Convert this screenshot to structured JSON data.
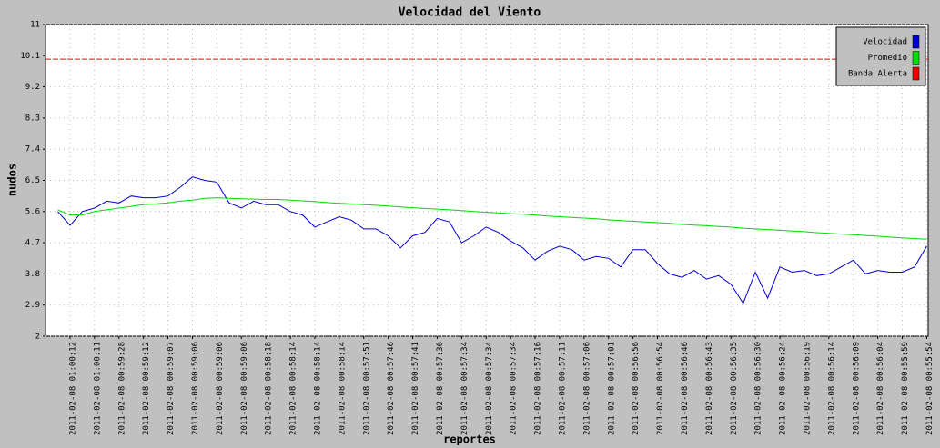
{
  "chart_data": {
    "type": "line",
    "title": "Velocidad del Viento",
    "xlabel": "reportes",
    "ylabel": "nudos",
    "categories": [
      null,
      "2011-02-08 01:00:12",
      null,
      "2011-02-08 01:00:11",
      null,
      "2011-02-08 00:59:28",
      null,
      "2011-02-08 00:59:12",
      null,
      "2011-02-08 00:59:07",
      null,
      "2011-02-08 00:59:06",
      null,
      "2011-02-08 00:59:06",
      null,
      "2011-02-08 00:59:06",
      null,
      "2011-02-08 00:58:18",
      null,
      "2011-02-08 00:58:14",
      null,
      "2011-02-08 00:58:14",
      null,
      "2011-02-08 00:58:14",
      null,
      "2011-02-08 00:57:51",
      null,
      "2011-02-08 00:57:46",
      null,
      "2011-02-08 00:57:41",
      null,
      "2011-02-08 00:57:36",
      null,
      "2011-02-08 00:57:34",
      null,
      "2011-02-08 00:57:34",
      null,
      "2011-02-08 00:57:34",
      null,
      "2011-02-08 00:57:16",
      null,
      "2011-02-08 00:57:11",
      null,
      "2011-02-08 00:57:06",
      null,
      "2011-02-08 00:57:01",
      null,
      "2011-02-08 00:56:56",
      null,
      "2011-02-08 00:56:54",
      null,
      "2011-02-08 00:56:46",
      null,
      "2011-02-08 00:56:43",
      null,
      "2011-02-08 00:56:35",
      null,
      "2011-02-08 00:56:30",
      null,
      "2011-02-08 00:56:24",
      null,
      "2011-02-08 00:56:19",
      null,
      "2011-02-08 00:56:14",
      null,
      "2011-02-08 00:56:09",
      null,
      "2011-02-08 00:56:04",
      null,
      "2011-02-08 00:55:59",
      null,
      "2011-02-08 00:55:54"
    ],
    "series": [
      {
        "name": "Velocidad",
        "color": "#0000cc",
        "values": [
          5.6,
          5.2,
          5.6,
          5.7,
          5.9,
          5.85,
          6.05,
          6.0,
          6.0,
          6.05,
          6.3,
          6.6,
          6.5,
          6.45,
          5.85,
          5.7,
          5.9,
          5.8,
          5.8,
          5.6,
          5.5,
          5.15,
          5.3,
          5.45,
          5.35,
          5.1,
          5.1,
          4.9,
          4.55,
          4.9,
          5.0,
          5.4,
          5.3,
          4.7,
          4.9,
          5.15,
          5.0,
          4.75,
          4.55,
          4.2,
          4.45,
          4.6,
          4.5,
          4.2,
          4.3,
          4.25,
          4.0,
          4.5,
          4.5,
          4.1,
          3.8,
          3.7,
          3.9,
          3.65,
          3.75,
          3.5,
          2.95,
          3.85,
          3.1,
          4.0,
          3.85,
          3.9,
          3.75,
          3.8,
          4.0,
          4.2,
          3.8,
          3.9,
          3.85,
          3.85,
          4.0,
          4.6
        ]
      },
      {
        "name": "Promedio",
        "color": "#00dd00",
        "values": [
          5.65,
          5.5,
          5.5,
          5.6,
          5.65,
          5.7,
          5.75,
          5.8,
          5.82,
          5.85,
          5.9,
          5.93,
          5.98,
          6.0,
          5.98,
          5.97,
          5.96,
          5.95,
          5.95,
          5.93,
          5.91,
          5.89,
          5.86,
          5.84,
          5.82,
          5.8,
          5.78,
          5.76,
          5.73,
          5.71,
          5.69,
          5.67,
          5.65,
          5.63,
          5.6,
          5.58,
          5.56,
          5.54,
          5.52,
          5.5,
          5.47,
          5.45,
          5.43,
          5.41,
          5.39,
          5.36,
          5.34,
          5.32,
          5.3,
          5.28,
          5.26,
          5.23,
          5.21,
          5.19,
          5.17,
          5.15,
          5.12,
          5.1,
          5.08,
          5.06,
          5.04,
          5.02,
          4.99,
          4.97,
          4.95,
          4.93,
          4.91,
          4.89,
          4.86,
          4.84,
          4.82,
          4.8
        ]
      },
      {
        "name": "Banda Alerta",
        "color": "#ee0000",
        "value": 10,
        "style": "dashed"
      }
    ],
    "ylim": [
      2,
      11
    ],
    "yticks": [
      2,
      2.9,
      3.8,
      4.7,
      5.6,
      6.5,
      7.4,
      8.3,
      9.2,
      10.1,
      11
    ],
    "grid": true,
    "legend": "upper right"
  }
}
